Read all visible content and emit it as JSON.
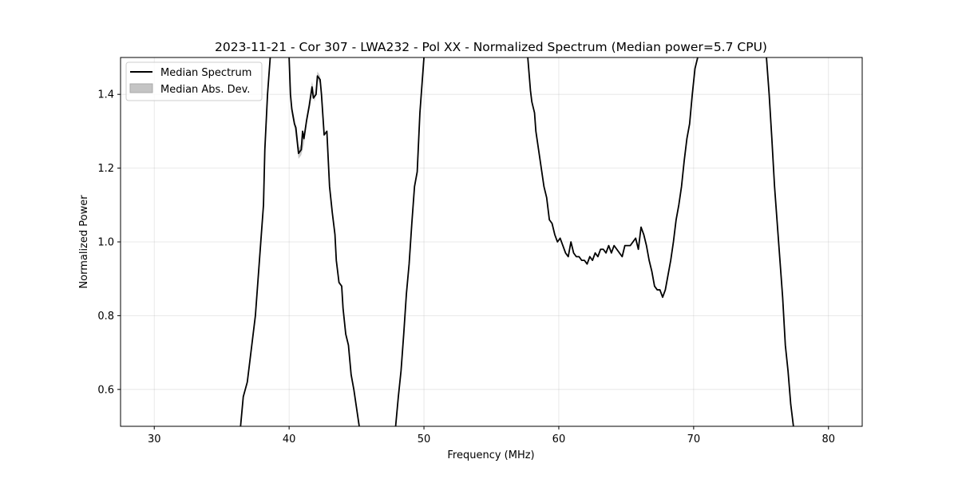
{
  "chart_data": {
    "type": "line",
    "title": "2023-11-21 - Cor 307 - LWA232 - Pol XX - Normalized Spectrum (Median power=5.7 CPU)",
    "xlabel": "Frequency (MHz)",
    "ylabel": "Normalized Power",
    "xlim": [
      27.5,
      82.5
    ],
    "ylim": [
      0.5,
      1.5
    ],
    "xticks": [
      30,
      40,
      50,
      60,
      70,
      80
    ],
    "yticks": [
      0.6,
      0.8,
      1.0,
      1.2,
      1.4
    ],
    "xtick_labels": [
      "30",
      "40",
      "50",
      "60",
      "70",
      "80"
    ],
    "ytick_labels": [
      "0.6",
      "0.8",
      "1.0",
      "1.2",
      "1.4"
    ],
    "grid": true,
    "legend": {
      "location": "upper-left",
      "entries": [
        {
          "label": "Median Spectrum",
          "kind": "line",
          "color": "#000000"
        },
        {
          "label": "Median Abs. Dev.",
          "kind": "band",
          "color": "#c4c4c4"
        }
      ]
    },
    "series": [
      {
        "name": "Median Spectrum",
        "color": "#000000",
        "segments": [
          [
            [
              36.4,
              0.5
            ],
            [
              36.6,
              0.58
            ],
            [
              36.9,
              0.62
            ],
            [
              37.1,
              0.68
            ],
            [
              37.3,
              0.74
            ],
            [
              37.5,
              0.8
            ],
            [
              37.7,
              0.9
            ],
            [
              37.9,
              1.0
            ],
            [
              38.1,
              1.1
            ],
            [
              38.2,
              1.25
            ],
            [
              38.4,
              1.4
            ],
            [
              38.6,
              1.5
            ]
          ],
          [
            [
              40.0,
              1.5
            ],
            [
              40.1,
              1.4
            ],
            [
              40.2,
              1.36
            ],
            [
              40.4,
              1.32
            ],
            [
              40.5,
              1.31
            ],
            [
              40.7,
              1.24
            ],
            [
              40.9,
              1.25
            ],
            [
              41.0,
              1.3
            ],
            [
              41.1,
              1.28
            ],
            [
              41.3,
              1.33
            ],
            [
              41.5,
              1.37
            ],
            [
              41.7,
              1.42
            ],
            [
              41.8,
              1.39
            ],
            [
              42.0,
              1.4
            ],
            [
              42.1,
              1.45
            ],
            [
              42.3,
              1.44
            ],
            [
              42.4,
              1.4
            ],
            [
              42.6,
              1.29
            ],
            [
              42.8,
              1.3
            ],
            [
              43.0,
              1.15
            ],
            [
              43.2,
              1.08
            ],
            [
              43.4,
              1.02
            ],
            [
              43.5,
              0.95
            ],
            [
              43.7,
              0.89
            ],
            [
              43.9,
              0.88
            ],
            [
              44.0,
              0.82
            ],
            [
              44.2,
              0.75
            ],
            [
              44.4,
              0.72
            ],
            [
              44.6,
              0.64
            ],
            [
              44.8,
              0.6
            ],
            [
              45.0,
              0.55
            ],
            [
              45.2,
              0.5
            ]
          ],
          [
            [
              47.9,
              0.5
            ],
            [
              48.1,
              0.58
            ],
            [
              48.3,
              0.65
            ],
            [
              48.5,
              0.75
            ],
            [
              48.7,
              0.86
            ],
            [
              48.9,
              0.94
            ],
            [
              49.1,
              1.05
            ],
            [
              49.3,
              1.15
            ],
            [
              49.5,
              1.19
            ],
            [
              49.7,
              1.35
            ],
            [
              50.0,
              1.5
            ]
          ],
          [
            [
              57.7,
              1.5
            ],
            [
              57.9,
              1.41
            ],
            [
              58.0,
              1.38
            ],
            [
              58.2,
              1.35
            ],
            [
              58.3,
              1.3
            ],
            [
              58.5,
              1.25
            ],
            [
              58.7,
              1.2
            ],
            [
              58.9,
              1.15
            ],
            [
              59.1,
              1.12
            ],
            [
              59.3,
              1.06
            ],
            [
              59.5,
              1.05
            ],
            [
              59.7,
              1.02
            ],
            [
              59.9,
              1.0
            ],
            [
              60.1,
              1.01
            ],
            [
              60.3,
              0.99
            ],
            [
              60.5,
              0.97
            ],
            [
              60.7,
              0.96
            ],
            [
              60.9,
              1.0
            ],
            [
              61.1,
              0.97
            ],
            [
              61.3,
              0.96
            ],
            [
              61.5,
              0.96
            ],
            [
              61.7,
              0.95
            ],
            [
              61.9,
              0.95
            ],
            [
              62.1,
              0.94
            ],
            [
              62.3,
              0.96
            ],
            [
              62.5,
              0.95
            ],
            [
              62.7,
              0.97
            ],
            [
              62.9,
              0.96
            ],
            [
              63.1,
              0.98
            ],
            [
              63.3,
              0.98
            ],
            [
              63.5,
              0.97
            ],
            [
              63.7,
              0.99
            ],
            [
              63.9,
              0.97
            ],
            [
              64.1,
              0.99
            ],
            [
              64.3,
              0.98
            ],
            [
              64.5,
              0.97
            ],
            [
              64.7,
              0.96
            ],
            [
              64.9,
              0.99
            ],
            [
              65.1,
              0.99
            ],
            [
              65.3,
              0.99
            ],
            [
              65.5,
              1.0
            ],
            [
              65.7,
              1.01
            ],
            [
              65.9,
              0.98
            ],
            [
              66.1,
              1.04
            ],
            [
              66.3,
              1.02
            ],
            [
              66.5,
              0.99
            ],
            [
              66.7,
              0.95
            ],
            [
              66.9,
              0.92
            ],
            [
              67.1,
              0.88
            ],
            [
              67.3,
              0.87
            ],
            [
              67.5,
              0.87
            ],
            [
              67.7,
              0.85
            ],
            [
              67.9,
              0.87
            ],
            [
              68.1,
              0.91
            ],
            [
              68.3,
              0.95
            ],
            [
              68.5,
              1.0
            ],
            [
              68.7,
              1.06
            ],
            [
              68.9,
              1.1
            ],
            [
              69.1,
              1.15
            ],
            [
              69.3,
              1.22
            ],
            [
              69.5,
              1.28
            ],
            [
              69.7,
              1.32
            ],
            [
              69.9,
              1.4
            ],
            [
              70.1,
              1.47
            ],
            [
              70.3,
              1.5
            ]
          ],
          [
            [
              75.4,
              1.5
            ],
            [
              75.6,
              1.4
            ],
            [
              75.8,
              1.28
            ],
            [
              76.0,
              1.15
            ],
            [
              76.2,
              1.05
            ],
            [
              76.4,
              0.95
            ],
            [
              76.6,
              0.85
            ],
            [
              76.8,
              0.72
            ],
            [
              77.0,
              0.65
            ],
            [
              77.2,
              0.56
            ],
            [
              77.4,
              0.5
            ]
          ]
        ]
      }
    ],
    "mad_band": {
      "name": "Median Abs. Dev.",
      "color": "#c4c4c4",
      "note": "narrow gray band visible around 40-43 MHz",
      "points": [
        [
          40.2,
          1.36,
          0.015
        ],
        [
          40.4,
          1.32,
          0.012
        ],
        [
          40.7,
          1.24,
          0.015
        ],
        [
          40.9,
          1.25,
          0.015
        ],
        [
          41.1,
          1.28,
          0.015
        ],
        [
          41.3,
          1.33,
          0.012
        ],
        [
          41.7,
          1.42,
          0.015
        ],
        [
          41.9,
          1.39,
          0.01
        ],
        [
          42.1,
          1.45,
          0.012
        ],
        [
          42.3,
          1.44,
          0.01
        ],
        [
          42.6,
          1.29,
          0.012
        ]
      ]
    }
  }
}
